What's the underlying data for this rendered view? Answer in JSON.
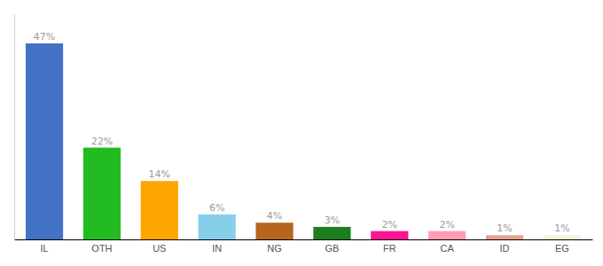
{
  "chart_data": {
    "type": "bar",
    "categories": [
      "IL",
      "OTH",
      "US",
      "IN",
      "NG",
      "GB",
      "FR",
      "CA",
      "ID",
      "EG"
    ],
    "values": [
      47,
      22,
      14,
      6,
      4,
      3,
      2,
      2,
      1,
      1
    ],
    "value_labels": [
      "47%",
      "22%",
      "14%",
      "6%",
      "4%",
      "3%",
      "2%",
      "2%",
      "1%",
      "1%"
    ],
    "colors": [
      "#4472c4",
      "#22bb22",
      "#ffa500",
      "#87ceeb",
      "#b5651d",
      "#1e7e1e",
      "#ff1493",
      "#ff9eb5",
      "#e8a090",
      "#f5f0d8"
    ],
    "ylim": [
      0,
      54
    ],
    "data_labels": true,
    "tick_labels": "x",
    "grid": false
  }
}
